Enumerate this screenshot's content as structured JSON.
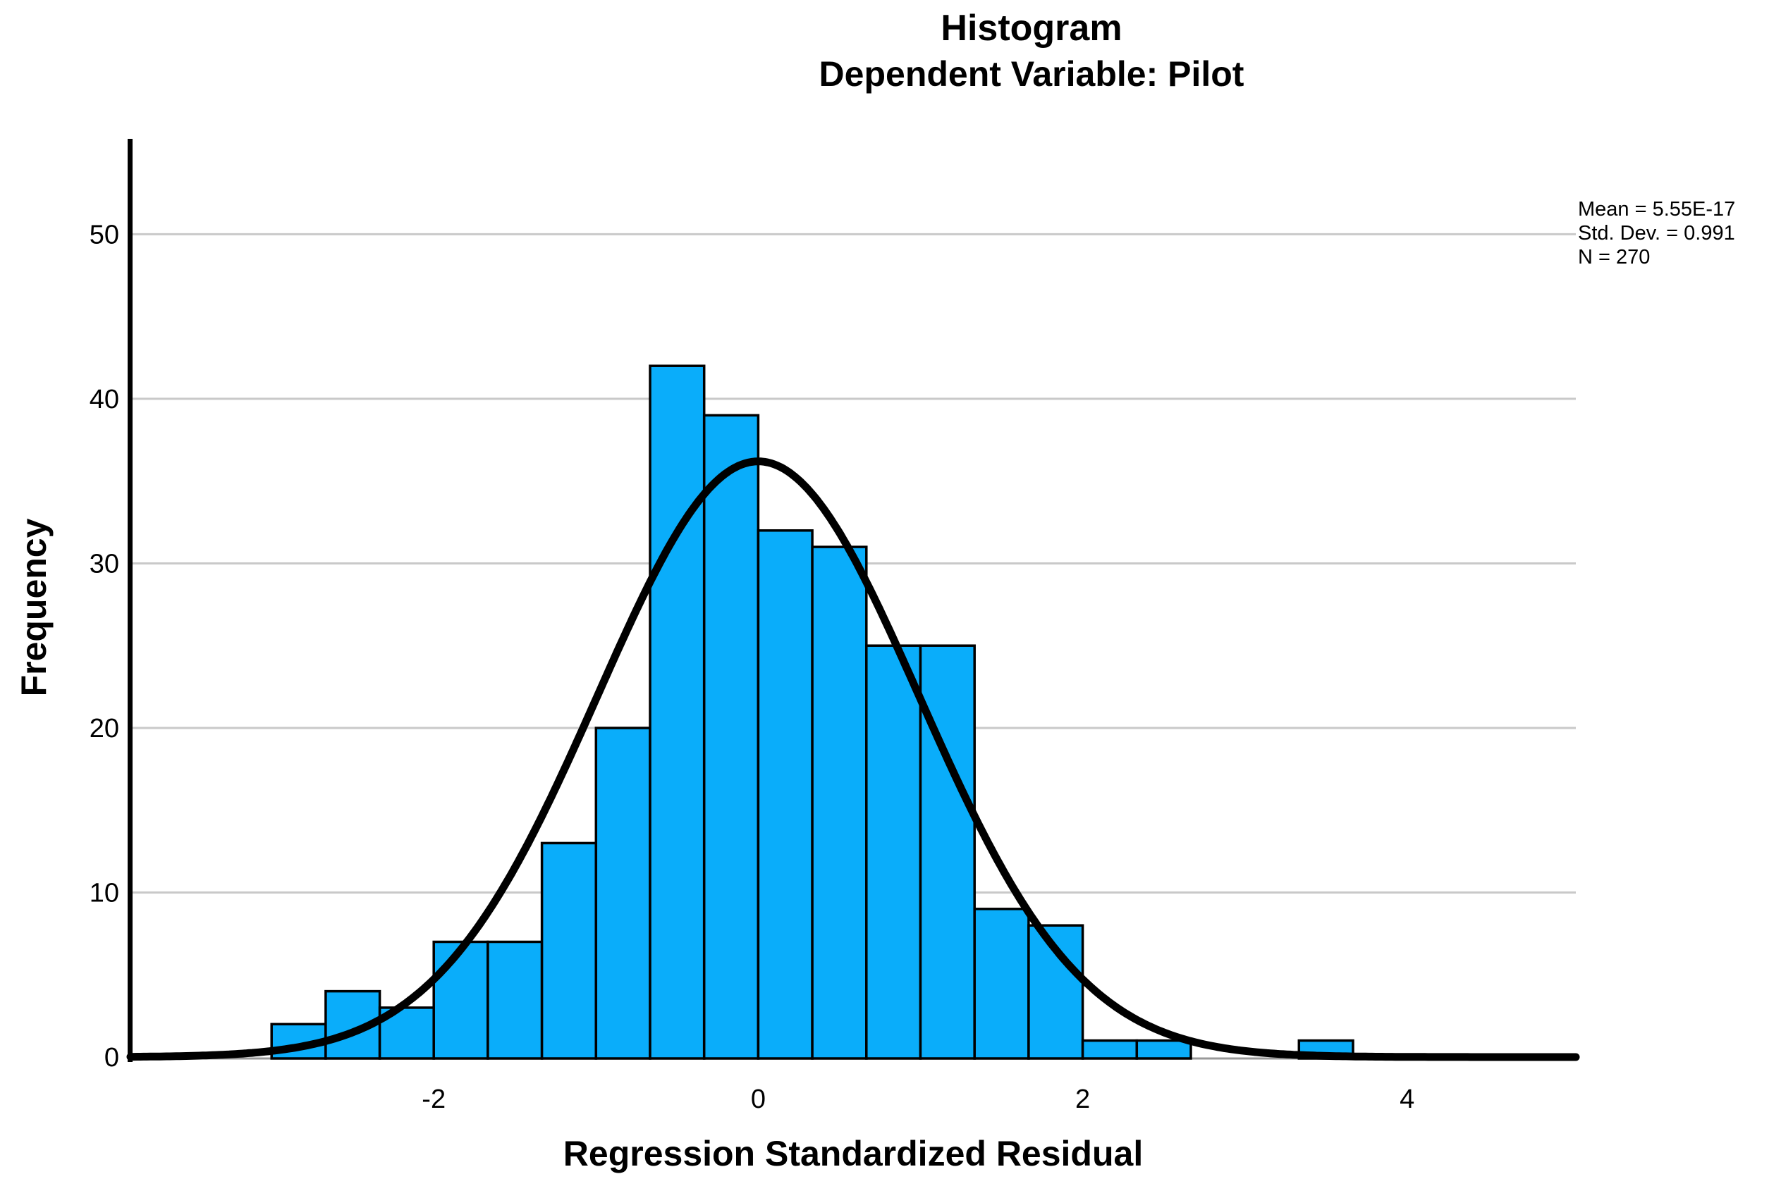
{
  "chart_data": {
    "type": "bar",
    "subtype": "histogram-with-normal-curve",
    "title": "Histogram",
    "subtitle": "Dependent Variable: Pilot",
    "xlabel": "Regression Standardized Residual",
    "ylabel": "Frequency",
    "stats": {
      "mean": "Mean = 5.55E-17",
      "std_dev": "Std. Dev. = 0.991",
      "n": "N = 270"
    },
    "bin_start": -3.0,
    "bin_width": 0.3333333,
    "frequencies": [
      2,
      4,
      3,
      7,
      7,
      13,
      20,
      42,
      39,
      32,
      31,
      25,
      25,
      9,
      8,
      1,
      1,
      0,
      0,
      1
    ],
    "normal_curve": {
      "mean": 0,
      "sd": 0.991,
      "n": 270,
      "peak": 36.2
    },
    "x_ticks": [
      -2,
      0,
      2,
      4
    ],
    "y_ticks": [
      0,
      10,
      20,
      30,
      40,
      50
    ],
    "xlim": [
      -3.87,
      5.04
    ],
    "ylim": [
      0,
      55.8
    ],
    "grid": "horizontal-only",
    "legend": "none",
    "colors": {
      "bar_fill": "#0AADFA",
      "bar_stroke": "#000000",
      "curve": "#000000",
      "gridline": "#C9C9C9",
      "y_axis_line": "#000000",
      "baseline": "#999999",
      "text": "#000000",
      "background": "#FFFFFF"
    }
  }
}
